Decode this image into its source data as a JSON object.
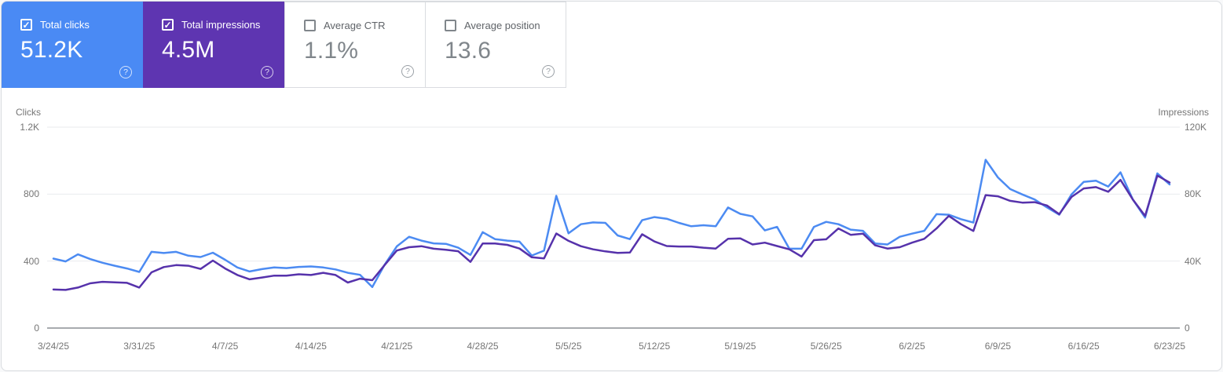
{
  "colors": {
    "clicks_card_bg": "#4a8af4",
    "impressions_card_bg": "#5e35b1",
    "clicks_line": "#4c8bf2",
    "impressions_line": "#5632ab",
    "gridline": "#e9ebee",
    "zero_line": "#a8abaf"
  },
  "cards": {
    "items": [
      {
        "label": "Total clicks",
        "value": "51.2K",
        "selected": true
      },
      {
        "label": "Total impressions",
        "value": "4.5M",
        "selected": true
      },
      {
        "label": "Average CTR",
        "value": "1.1%",
        "selected": false
      },
      {
        "label": "Average position",
        "value": "13.6",
        "selected": false
      }
    ],
    "help_glyph": "?",
    "check_glyph": "✓"
  },
  "chart": {
    "left_axis": {
      "title": "Clicks",
      "ticks": [
        "1.2K",
        "800",
        "400",
        "0"
      ]
    },
    "right_axis": {
      "title": "Impressions",
      "ticks": [
        "120K",
        "80K",
        "40K",
        "0"
      ]
    },
    "x_labels": [
      "3/24/25",
      "3/31/25",
      "4/7/25",
      "4/14/25",
      "4/21/25",
      "4/28/25",
      "5/5/25",
      "5/12/25",
      "5/19/25",
      "5/26/25",
      "6/2/25",
      "6/9/25",
      "6/16/25",
      "6/23/25"
    ]
  },
  "chart_data": {
    "type": "line",
    "x_start": "3/24/25",
    "x_end": "6/23/25",
    "x_interval": "daily",
    "x_tick_labels": [
      "3/24/25",
      "3/31/25",
      "4/7/25",
      "4/14/25",
      "4/21/25",
      "4/28/25",
      "5/5/25",
      "5/12/25",
      "5/19/25",
      "5/26/25",
      "6/2/25",
      "6/9/25",
      "6/16/25",
      "6/23/25"
    ],
    "ylim_left": [
      0,
      1200
    ],
    "ylim_right": [
      0,
      120000
    ],
    "grid": true,
    "series": [
      {
        "name": "Clicks",
        "axis": "left",
        "color": "#4c8bf2",
        "values": [
          415,
          398,
          440,
          412,
          390,
          372,
          356,
          335,
          455,
          448,
          455,
          432,
          424,
          450,
          408,
          362,
          338,
          352,
          362,
          358,
          365,
          368,
          362,
          350,
          330,
          318,
          245,
          378,
          488,
          545,
          522,
          506,
          503,
          480,
          437,
          573,
          531,
          522,
          516,
          433,
          462,
          790,
          566,
          620,
          631,
          628,
          553,
          531,
          644,
          663,
          653,
          628,
          608,
          614,
          608,
          720,
          682,
          667,
          583,
          604,
          474,
          474,
          604,
          634,
          620,
          588,
          581,
          505,
          499,
          545,
          564,
          581,
          680,
          677,
          650,
          630,
          1005,
          900,
          830,
          798,
          768,
          721,
          677,
          798,
          873,
          880,
          845,
          930,
          768,
          660,
          924,
          858
        ]
      },
      {
        "name": "Impressions",
        "axis": "right",
        "color": "#5632ab",
        "values": [
          23000,
          22800,
          24200,
          26700,
          27600,
          27300,
          27000,
          24200,
          33300,
          36400,
          37600,
          37200,
          35300,
          40300,
          35600,
          31700,
          29100,
          30200,
          31300,
          31300,
          32100,
          31700,
          33000,
          31700,
          27200,
          29500,
          28600,
          37600,
          46300,
          48300,
          48900,
          47400,
          46800,
          45900,
          39500,
          50500,
          50500,
          49700,
          47500,
          42300,
          41600,
          56500,
          52100,
          48900,
          47000,
          45800,
          44900,
          45100,
          56000,
          51700,
          49000,
          48700,
          48700,
          48000,
          47500,
          53300,
          53600,
          49900,
          51000,
          49000,
          47000,
          42700,
          52500,
          53000,
          59500,
          55700,
          56400,
          49400,
          47500,
          48300,
          51000,
          53300,
          59500,
          67000,
          62000,
          58000,
          79400,
          78700,
          76000,
          74900,
          75200,
          73200,
          68000,
          78300,
          83400,
          84200,
          81400,
          88500,
          76800,
          67000,
          91100,
          86900
        ]
      }
    ],
    "title": ""
  }
}
